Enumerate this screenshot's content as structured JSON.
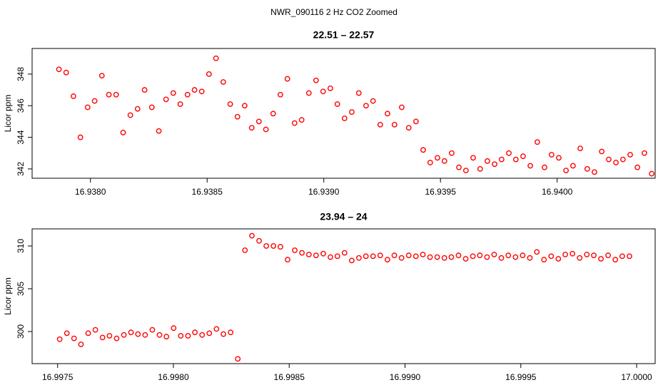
{
  "title": "NWR_090116  2 Hz CO2 Zoomed",
  "chart_data": [
    {
      "type": "scatter",
      "title": "22.51 – 22.57",
      "y_label": "Licor ppm",
      "color": "#ff0000",
      "xlim": [
        16.93775,
        16.94042
      ],
      "ylim": [
        341.41,
        349.62
      ],
      "xticks": [
        {
          "value": 16.938,
          "label": "16.9380"
        },
        16.9385,
        {
          "value": 16.939,
          "label": "16.9390"
        },
        16.9395,
        {
          "value": 16.94,
          "label": "16.9400"
        }
      ],
      "yticks": [
        342,
        344,
        346,
        348
      ],
      "x": [
        16.937865,
        16.937896,
        16.937927,
        16.937957,
        16.937988,
        16.938018,
        16.938049,
        16.938079,
        16.93811,
        16.93814,
        16.938171,
        16.938202,
        16.938232,
        16.938263,
        16.938293,
        16.938324,
        16.938355,
        16.938385,
        16.938416,
        16.938446,
        16.938477,
        16.938508,
        16.938538,
        16.938569,
        16.938599,
        16.93863,
        16.938661,
        16.938691,
        16.938722,
        16.938752,
        16.938783,
        16.938814,
        16.938844,
        16.938875,
        16.938905,
        16.938936,
        16.938967,
        16.938997,
        16.939028,
        16.939058,
        16.939089,
        16.93912,
        16.93915,
        16.939181,
        16.939211,
        16.939242,
        16.939273,
        16.939303,
        16.939334,
        16.939364,
        16.939395,
        16.939426,
        16.939456,
        16.939487,
        16.939517,
        16.939548,
        16.939579,
        16.939609,
        16.93964,
        16.93967,
        16.939701,
        16.939732,
        16.939762,
        16.939793,
        16.939823,
        16.939854,
        16.939885,
        16.939915,
        16.939946,
        16.939976,
        16.940007,
        16.940038,
        16.940068,
        16.940099,
        16.940129,
        16.94016,
        16.940191,
        16.940221,
        16.940252,
        16.940282,
        16.940313,
        16.940344,
        16.940374,
        16.940405
      ],
      "values": [
        348.3,
        348.1,
        346.6,
        344.0,
        345.9,
        346.3,
        347.9,
        346.7,
        346.7,
        344.3,
        345.4,
        345.8,
        347.0,
        345.9,
        344.4,
        346.4,
        346.8,
        346.1,
        346.7,
        347.0,
        346.9,
        348.0,
        349.0,
        347.5,
        346.1,
        345.3,
        346.0,
        344.6,
        345.0,
        344.5,
        345.5,
        346.7,
        347.7,
        344.9,
        345.1,
        346.8,
        347.6,
        346.9,
        347.1,
        346.1,
        345.2,
        345.6,
        346.8,
        346.0,
        346.3,
        344.8,
        345.5,
        344.8,
        345.9,
        344.6,
        345.0,
        343.2,
        342.4,
        342.7,
        342.5,
        343.0,
        342.1,
        341.9,
        342.7,
        342.0,
        342.5,
        342.3,
        342.6,
        343.0,
        342.6,
        342.8,
        342.2,
        343.7,
        342.1,
        342.9,
        342.7,
        341.9,
        342.2,
        343.3,
        342.0,
        341.8,
        343.1,
        342.6,
        342.4,
        342.6,
        342.9,
        342.1,
        343.0,
        341.7
      ]
    },
    {
      "type": "scatter",
      "title": "23.94 – 24",
      "y_label": "Licor ppm",
      "color": "#ff0000",
      "xlim": [
        16.99739,
        17.00008
      ],
      "ylim": [
        296.25,
        312.0
      ],
      "xticks": [
        16.9975,
        {
          "value": 16.998,
          "label": "16.9980"
        },
        16.9985,
        {
          "value": 16.999,
          "label": "16.9990"
        },
        16.9995,
        {
          "value": 17.0,
          "label": "17.0000"
        }
      ],
      "yticks": [
        300,
        305,
        310
      ],
      "x": [
        16.997509,
        16.99754,
        16.997571,
        16.997601,
        16.997632,
        16.997663,
        16.997694,
        16.997724,
        16.997755,
        16.997786,
        16.997817,
        16.997847,
        16.997878,
        16.997909,
        16.99794,
        16.99797,
        16.998001,
        16.998032,
        16.998063,
        16.998093,
        16.998124,
        16.998155,
        16.998186,
        16.998216,
        16.998247,
        16.998278,
        16.998309,
        16.998339,
        16.99837,
        16.998401,
        16.998432,
        16.998462,
        16.998493,
        16.998524,
        16.998555,
        16.998585,
        16.998616,
        16.998647,
        16.998678,
        16.998708,
        16.998739,
        16.99877,
        16.998801,
        16.998831,
        16.998862,
        16.998893,
        16.998924,
        16.998954,
        16.998985,
        16.999016,
        16.999047,
        16.999077,
        16.999108,
        16.999139,
        16.99917,
        16.9992,
        16.999231,
        16.999262,
        16.999293,
        16.999323,
        16.999354,
        16.999385,
        16.999416,
        16.999446,
        16.999477,
        16.999508,
        16.999539,
        16.999569,
        16.9996,
        16.999631,
        16.999662,
        16.999692,
        16.999723,
        16.999754,
        16.999785,
        16.999815,
        16.999846,
        16.999877,
        16.999908,
        16.999938,
        16.999969
      ],
      "values": [
        299.1,
        299.8,
        299.2,
        298.5,
        299.8,
        300.2,
        299.3,
        299.5,
        299.2,
        299.6,
        299.9,
        299.7,
        299.6,
        300.2,
        299.6,
        299.4,
        300.4,
        299.5,
        299.5,
        299.9,
        299.6,
        299.8,
        300.3,
        299.7,
        299.9,
        296.8,
        309.5,
        311.2,
        310.6,
        310.0,
        310.0,
        309.9,
        308.4,
        309.5,
        309.2,
        309.0,
        308.9,
        309.1,
        308.7,
        308.8,
        309.2,
        308.3,
        308.6,
        308.8,
        308.8,
        308.9,
        308.4,
        308.9,
        308.6,
        308.9,
        308.8,
        309.0,
        308.7,
        308.7,
        308.6,
        308.7,
        308.9,
        308.5,
        308.8,
        308.9,
        308.7,
        309.0,
        308.6,
        308.9,
        308.7,
        308.9,
        308.6,
        309.3,
        308.4,
        308.8,
        308.5,
        309.0,
        309.1,
        308.6,
        309.0,
        308.9,
        308.5,
        308.9,
        308.4,
        308.8,
        308.8
      ]
    }
  ]
}
